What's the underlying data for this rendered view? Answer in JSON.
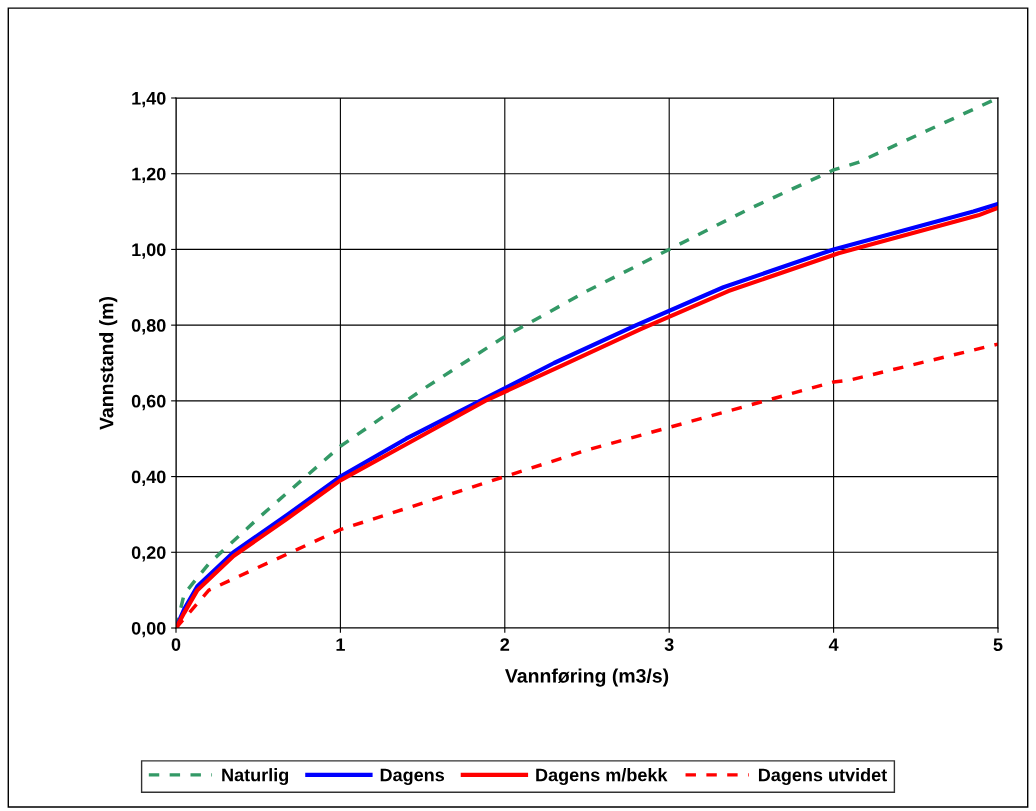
{
  "chart_data": {
    "type": "line",
    "xlabel": "Vannføring (m3/s)",
    "ylabel": "Vannstand (m)",
    "xlim": [
      0,
      5
    ],
    "xticks": [
      0,
      1,
      2,
      3,
      4,
      5
    ],
    "ylim": [
      0,
      1.4
    ],
    "yticks": [
      {
        "value": 0,
        "label": "0,00"
      },
      {
        "value": 0.2,
        "label": "0,20"
      },
      {
        "value": 0.4,
        "label": "0,40"
      },
      {
        "value": 0.6,
        "label": "0,60"
      },
      {
        "value": 0.8,
        "label": "0,80"
      },
      {
        "value": 1.0,
        "label": "1,00"
      },
      {
        "value": 1.2,
        "label": "1,20"
      },
      {
        "value": 1.4,
        "label": "1,40"
      }
    ],
    "grid": true,
    "legend": "bottom",
    "marker": "none",
    "series": [
      {
        "name": "Naturlig",
        "color": "#339966",
        "line_style": "dashed",
        "x": [
          0,
          0.05,
          0.2,
          0.5,
          1,
          1.5,
          2,
          2.5,
          3,
          3.5,
          4,
          4.15,
          4.6,
          5
        ],
        "values": [
          0,
          0.09,
          0.17,
          0.29,
          0.48,
          0.63,
          0.77,
          0.89,
          1.0,
          1.11,
          1.21,
          1.23,
          1.32,
          1.4
        ]
      },
      {
        "name": "Dagens",
        "color": "#0000ff",
        "line_style": "solid",
        "x": [
          0,
          0.05,
          0.13,
          0.35,
          0.68,
          1.0,
          1.4,
          1.85,
          2.3,
          2.8,
          3.33,
          4.0,
          4.85,
          5
        ],
        "values": [
          0,
          0.05,
          0.11,
          0.2,
          0.3,
          0.4,
          0.5,
          0.6,
          0.7,
          0.8,
          0.9,
          1.0,
          1.1,
          1.12
        ]
      },
      {
        "name": "Dagens m/bekk",
        "color": "#ff0000",
        "line_style": "solid",
        "x": [
          0,
          0.05,
          0.13,
          0.35,
          0.68,
          1.0,
          1.42,
          1.88,
          2.33,
          2.83,
          3.36,
          4.03,
          4.88,
          5
        ],
        "values": [
          0,
          0.04,
          0.1,
          0.19,
          0.29,
          0.39,
          0.49,
          0.6,
          0.69,
          0.79,
          0.89,
          0.99,
          1.09,
          1.11
        ]
      },
      {
        "name": "Dagens utvidet",
        "color": "#ff0000",
        "line_style": "dashed",
        "x": [
          0,
          0.2,
          0.35,
          0.7,
          1.0,
          1.5,
          2.0,
          2.5,
          3.0,
          3.5,
          4.0,
          4.1,
          5
        ],
        "values": [
          0,
          0.1,
          0.13,
          0.2,
          0.26,
          0.33,
          0.4,
          0.47,
          0.53,
          0.59,
          0.65,
          0.655,
          0.75
        ]
      }
    ]
  }
}
